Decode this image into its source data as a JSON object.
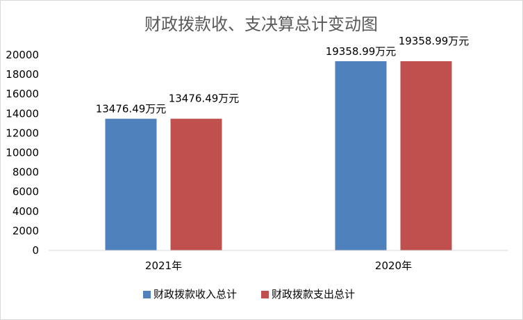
{
  "chart_data": {
    "type": "bar",
    "title": "财政拨款收、支决算总计变动图",
    "categories": [
      "2021年",
      "2020年"
    ],
    "series": [
      {
        "name": "财政拨款收入总计",
        "values": [
          13476.49,
          19358.99
        ],
        "labels": [
          "13476.49万元",
          "19358.99万元"
        ],
        "color": "#4f81bd"
      },
      {
        "name": "财政拨款支出总计",
        "values": [
          13476.49,
          19358.99
        ],
        "labels": [
          "13476.49万元",
          "19358.99万元"
        ],
        "color": "#c0504d"
      }
    ],
    "ylim": [
      0,
      20000
    ],
    "yticks": [
      "0",
      "2000",
      "4000",
      "6000",
      "8000",
      "10000",
      "12000",
      "14000",
      "16000",
      "18000",
      "20000"
    ],
    "grid": false,
    "legend_position": "bottom"
  }
}
